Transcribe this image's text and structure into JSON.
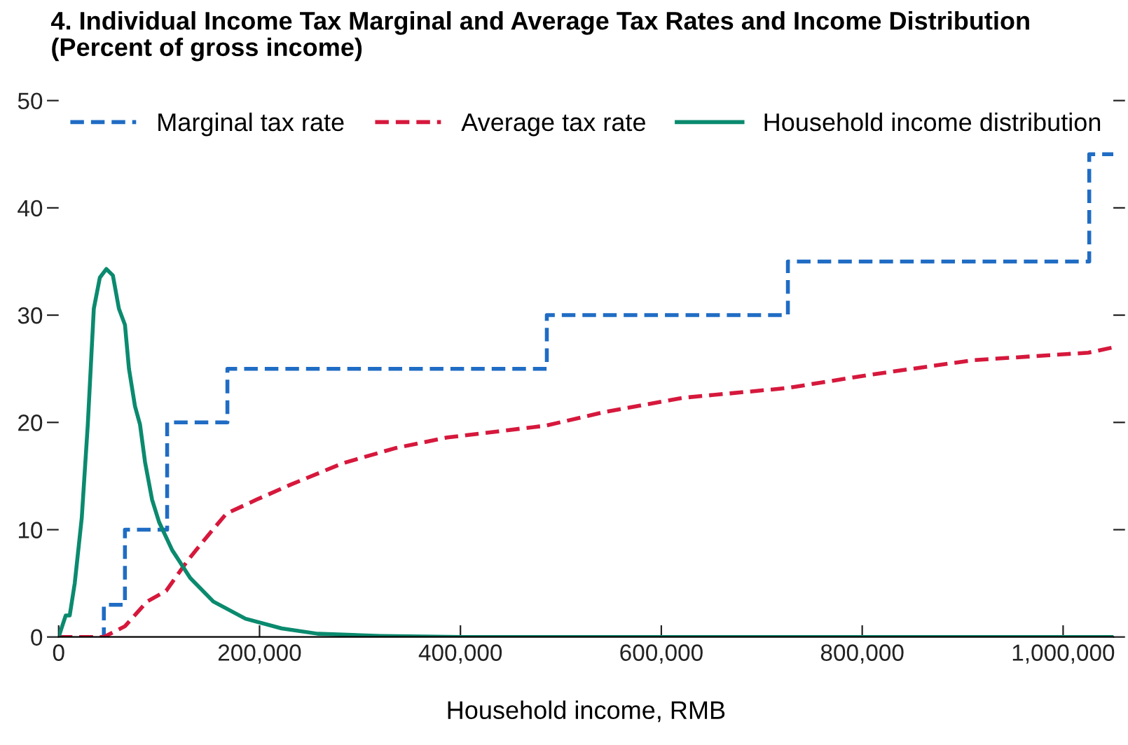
{
  "chart_data": {
    "type": "line",
    "title": "4. Individual Income Tax Marginal and Average Tax Rates and Income Distribution\n(Percent of gross income)",
    "xlabel": "Household income, RMB",
    "xlim": [
      0,
      1050000
    ],
    "xticks": [
      0,
      {
        "value": 200000,
        "label": "200,000"
      },
      {
        "value": 400000,
        "label": "400,000"
      },
      {
        "value": 600000,
        "label": "600,000"
      },
      {
        "value": 800000,
        "label": "800,000"
      },
      {
        "value": 1000000,
        "label": "1,000,000"
      }
    ],
    "ylim": [
      0,
      50
    ],
    "yticks": [
      0,
      10,
      20,
      30,
      40,
      50
    ],
    "grid": false,
    "legend": "top",
    "marker": "none",
    "series": [
      {
        "name": "Marginal tax rate",
        "type": "step",
        "color": "#1f6cc4",
        "line_style": "dashed",
        "x": [
          0,
          45000,
          66000,
          108000,
          168000,
          486000,
          726000,
          1026000,
          1050000
        ],
        "values": [
          0,
          3,
          10,
          20,
          25,
          30,
          35,
          45,
          45
        ]
      },
      {
        "name": "Average tax rate",
        "color": "#d6183c",
        "line_style": "dashed",
        "x": [
          0,
          45000,
          66000,
          88000,
          107000,
          129000,
          149000,
          167000,
          197000,
          231000,
          283000,
          335000,
          387000,
          485000,
          545000,
          622000,
          725000,
          805000,
          910000,
          1025000,
          1050000
        ],
        "values": [
          0,
          0,
          1.0,
          3.3,
          4.3,
          7.2,
          9.5,
          11.5,
          12.8,
          14.2,
          16.2,
          17.6,
          18.6,
          19.7,
          21.0,
          22.3,
          23.2,
          24.4,
          25.8,
          26.5,
          27.0
        ]
      },
      {
        "name": "Household income distribution",
        "color": "#0a8a6e",
        "line_style": "solid",
        "x": [
          0,
          7000,
          11000,
          16000,
          23000,
          29000,
          35000,
          41000,
          47500,
          54000,
          60000,
          66000,
          70000,
          76000,
          81000,
          86000,
          93000,
          100000,
          113000,
          131000,
          154000,
          186000,
          222000,
          258000,
          320000,
          400000,
          1050000
        ],
        "values": [
          0,
          2.0,
          2.0,
          5.0,
          11.1,
          19.8,
          30.6,
          33.5,
          34.3,
          33.7,
          30.6,
          29.1,
          25.0,
          21.5,
          19.8,
          16.3,
          12.8,
          10.7,
          8.1,
          5.5,
          3.3,
          1.7,
          0.8,
          0.3,
          0.1,
          0,
          0
        ]
      }
    ]
  }
}
